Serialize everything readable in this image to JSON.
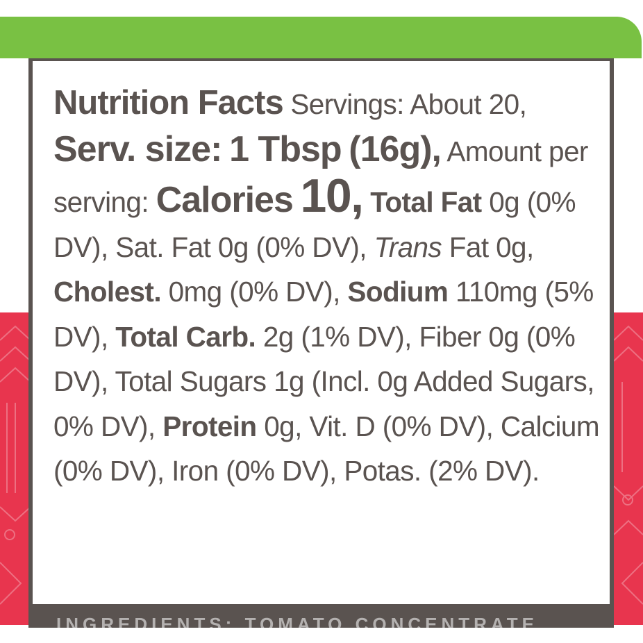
{
  "colors": {
    "green": "#79c143",
    "red": "#e8354e",
    "text": "#5a5350",
    "frame": "#5a5350"
  },
  "facts": {
    "title": "Nutrition Facts",
    "servings": "Servings:",
    "servings_value": "About 20,",
    "serv_size_label": "Serv. size:",
    "serv_size_value": "1 Tbsp",
    "serv_size_grams": "(16g),",
    "amount_per_serving": "Amount per serving:",
    "calories_label": "Calories",
    "calories_value": "10,",
    "total_fat_label": "Total Fat",
    "total_fat_value": "0g (0% DV),",
    "sat_fat": "Sat. Fat 0g (0% DV),",
    "trans_label": "Trans",
    "trans_fat": "Fat 0g,",
    "cholest_label": "Cholest.",
    "cholest_value": "0mg (0% DV),",
    "sodium_label": "Sodium",
    "sodium_value": "110mg (5% DV),",
    "total_carb_label": "Total Carb.",
    "total_carb_value": "2g (1% DV),",
    "fiber": "Fiber 0g (0% DV),",
    "total_sugars": "Total Sugars 1g (Incl. 0g Added Sugars, 0% DV),",
    "protein_label": "Protein",
    "protein_value": "0g,",
    "vit_d": "Vit. D (0% DV),",
    "calcium": "Calcium (0% DV),",
    "iron": "Iron (0% DV),",
    "potassium": "Potas. (2% DV)."
  },
  "ingredients_cut": "INGREDIENTS: TOMATO CONCENTRATE"
}
